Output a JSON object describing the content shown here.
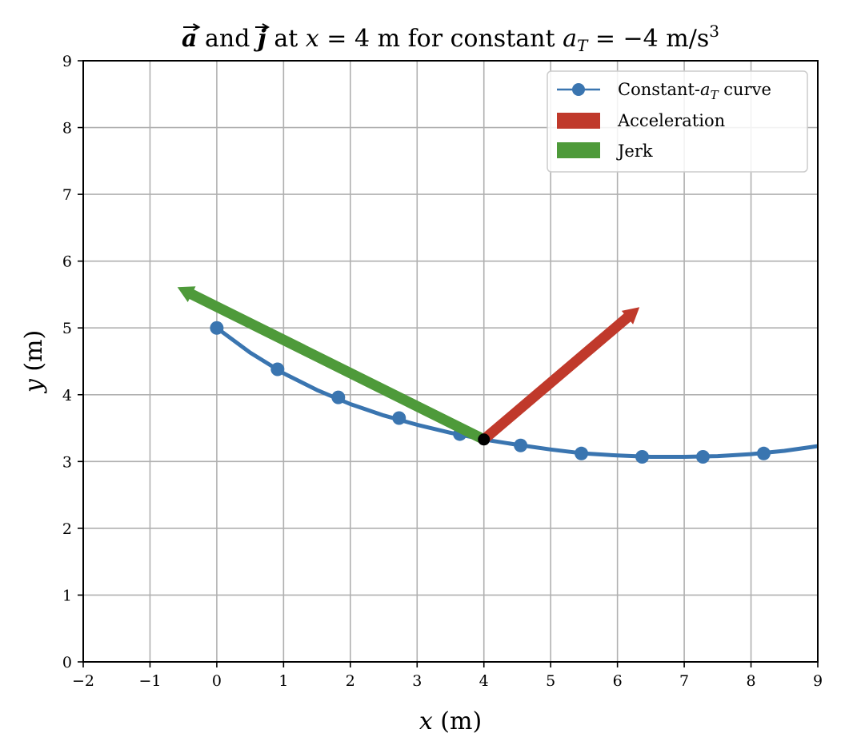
{
  "chart_data": {
    "type": "line",
    "title": {
      "vec_a": "a",
      "and": " and ",
      "vec_j": "j",
      "at": " at ",
      "x_var": "x",
      "x_eq": " = 4 m for constant ",
      "adot": "a",
      "sub_T": "T",
      "eq_value": " = −4 m/s",
      "exponent": "3"
    },
    "xlabel": {
      "var": "x",
      "unit": " (m)"
    },
    "ylabel": {
      "var": "y",
      "unit": " (m)"
    },
    "xlim": [
      -2,
      9
    ],
    "ylim": [
      0,
      9
    ],
    "xticks": [
      -2,
      -1,
      0,
      1,
      2,
      3,
      4,
      5,
      6,
      7,
      8,
      9
    ],
    "yticks": [
      0,
      1,
      2,
      3,
      4,
      5,
      6,
      7,
      8,
      9
    ],
    "xtick_labels": [
      "−2",
      "−1",
      "0",
      "1",
      "2",
      "3",
      "4",
      "5",
      "6",
      "7",
      "8",
      "9"
    ],
    "ytick_labels": [
      "0",
      "1",
      "2",
      "3",
      "4",
      "5",
      "6",
      "7",
      "8",
      "9"
    ],
    "grid": true,
    "legend_position": "top-right",
    "series": [
      {
        "name_prefix": "Constant-",
        "name_a": "a",
        "name_sub": "T",
        "name_suffix": " curve",
        "color": "#3a75b0",
        "x": [
          0,
          0.5,
          1.0,
          1.5,
          2.0,
          2.5,
          3.0,
          3.5,
          4.0,
          4.5,
          5.0,
          5.5,
          6.0,
          6.5,
          7.0,
          7.5,
          8.0,
          8.5,
          9.0
        ],
        "y": [
          5.0,
          4.63,
          4.32,
          4.07,
          3.86,
          3.69,
          3.55,
          3.43,
          3.33,
          3.25,
          3.18,
          3.12,
          3.09,
          3.07,
          3.07,
          3.08,
          3.11,
          3.16,
          3.23
        ],
        "marker_x": [
          0,
          0.91,
          1.82,
          2.73,
          3.64,
          4.55,
          5.46,
          6.37,
          7.28,
          8.19
        ],
        "marker_y": [
          5.0,
          4.38,
          3.96,
          3.65,
          3.41,
          3.24,
          3.12,
          3.07,
          3.07,
          3.12
        ]
      }
    ],
    "point": {
      "x": 4.0,
      "y": 3.33,
      "color": "#000000"
    },
    "vectors": [
      {
        "name": "Acceleration",
        "color": "#c0392b",
        "from": [
          4.0,
          3.33
        ],
        "to": [
          6.33,
          5.31
        ]
      },
      {
        "name": "Jerk",
        "color": "#4e9a3a",
        "from": [
          4.0,
          3.33
        ],
        "to": [
          -0.59,
          5.61
        ]
      }
    ]
  }
}
